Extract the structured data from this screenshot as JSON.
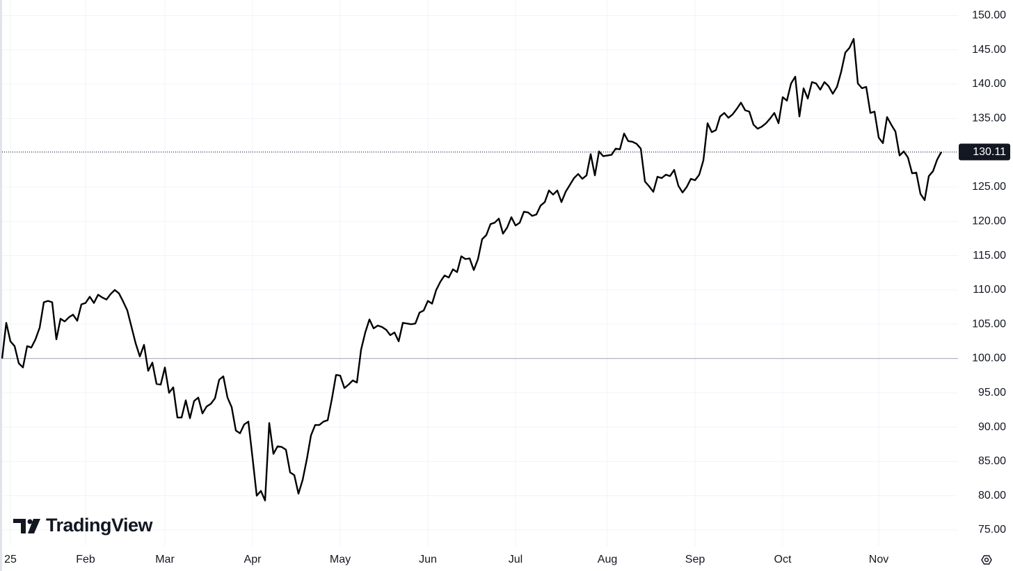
{
  "chart_data": {
    "type": "line",
    "color": "#000000",
    "values": [
      100,
      105.2,
      102.5,
      101.8,
      99.3,
      98.7,
      101.8,
      101.6,
      102.8,
      104.5,
      108.2,
      108.4,
      108.2,
      102.8,
      105.8,
      105.4,
      106,
      106.4,
      105.5,
      107.9,
      108.1,
      109,
      108.1,
      109.3,
      108.9,
      108.6,
      109.4,
      110,
      109.5,
      108.3,
      107,
      104.6,
      102.2,
      100.3,
      102,
      98.2,
      99.4,
      96.3,
      96.2,
      98.7,
      95,
      95.8,
      91.4,
      91.4,
      93.9,
      91.3,
      93.8,
      94.3,
      92,
      93,
      93.4,
      94.2,
      96.9,
      97.4,
      94.3,
      92.9,
      89.5,
      89.1,
      90.4,
      90.8,
      85.5,
      80,
      80.7,
      79.3,
      90.6,
      86.1,
      87.2,
      87.1,
      86.7,
      83.4,
      83,
      80.3,
      82.3,
      85.3,
      88.8,
      90.3,
      90.3,
      90.8,
      91,
      94.1,
      97.6,
      97.5,
      95.7,
      96.2,
      96.8,
      96.5,
      101.3,
      103.8,
      105.7,
      104.4,
      104.8,
      104.6,
      104.2,
      103.4,
      103.8,
      102.5,
      105.2,
      105.1,
      105,
      105.1,
      106.7,
      107,
      108.4,
      108,
      110,
      111.2,
      112.1,
      111.8,
      113,
      112.6,
      114.9,
      114.5,
      114.6,
      112.9,
      114.5,
      117.4,
      118,
      119.6,
      119.8,
      120.4,
      118.2,
      119.1,
      120.6,
      119.4,
      119.8,
      121.4,
      121.3,
      120.8,
      121,
      122.3,
      122.8,
      124.5,
      123.9,
      124.5,
      122.8,
      124.3,
      125.3,
      126.3,
      126.9,
      126.2,
      126.7,
      129.8,
      126.7,
      130.2,
      129.5,
      129.6,
      129.7,
      130.6,
      130.5,
      132.8,
      131.7,
      131.6,
      131.3,
      130.6,
      125.8,
      125.1,
      124.3,
      126.5,
      126.3,
      126.8,
      126.6,
      127.5,
      125.2,
      124.2,
      125,
      126.2,
      126,
      126.8,
      128.9,
      134.3,
      133,
      133.3,
      135.3,
      135.8,
      135.1,
      135.6,
      136.4,
      137.3,
      136.2,
      136,
      134.1,
      133.5,
      133.8,
      134.3,
      135,
      135.8,
      134.3,
      138.1,
      137.6,
      140.1,
      141.1,
      135.3,
      139.4,
      137.9,
      140.3,
      140.1,
      139.2,
      140.3,
      139.7,
      138.6,
      139.6,
      141.8,
      144.6,
      145.3,
      146.6,
      140.1,
      139.4,
      139.6,
      135.8,
      136,
      132.2,
      131.4,
      135.2,
      134.1,
      133.1,
      129.6,
      130.2,
      129.3,
      127,
      127.1,
      124,
      123.1,
      126.6,
      127.3,
      129,
      130.11
    ],
    "xlim": [
      0,
      229
    ],
    "xticks": [
      {
        "value": 2,
        "label": "25"
      },
      {
        "value": 20,
        "label": "Feb"
      },
      {
        "value": 39,
        "label": "Mar"
      },
      {
        "value": 60,
        "label": "Apr"
      },
      {
        "value": 81,
        "label": "May"
      },
      {
        "value": 102,
        "label": "Jun"
      },
      {
        "value": 123,
        "label": "Jul"
      },
      {
        "value": 145,
        "label": "Aug"
      },
      {
        "value": 166,
        "label": "Sep"
      },
      {
        "value": 187,
        "label": "Oct"
      },
      {
        "value": 210,
        "label": "Nov"
      }
    ],
    "ylim": [
      72.67,
      152.27
    ],
    "yticks": [
      {
        "value": 75,
        "label": "75.00"
      },
      {
        "value": 80,
        "label": "80.00"
      },
      {
        "value": 85,
        "label": "85.00"
      },
      {
        "value": 90,
        "label": "90.00"
      },
      {
        "value": 95,
        "label": "95.00"
      },
      {
        "value": 100,
        "label": "100.00"
      },
      {
        "value": 105,
        "label": "105.00"
      },
      {
        "value": 110,
        "label": "110.00"
      },
      {
        "value": 115,
        "label": "115.00"
      },
      {
        "value": 120,
        "label": "120.00"
      },
      {
        "value": 125,
        "label": "125.00"
      },
      {
        "value": 130,
        "label": "130.00"
      },
      {
        "value": 135,
        "label": "135.00"
      },
      {
        "value": 140,
        "label": "140.00"
      },
      {
        "value": 145,
        "label": "145.00"
      },
      {
        "value": 150,
        "label": "150.00"
      }
    ],
    "baseline": 100,
    "grid": true,
    "watermark": "TradingView"
  }
}
